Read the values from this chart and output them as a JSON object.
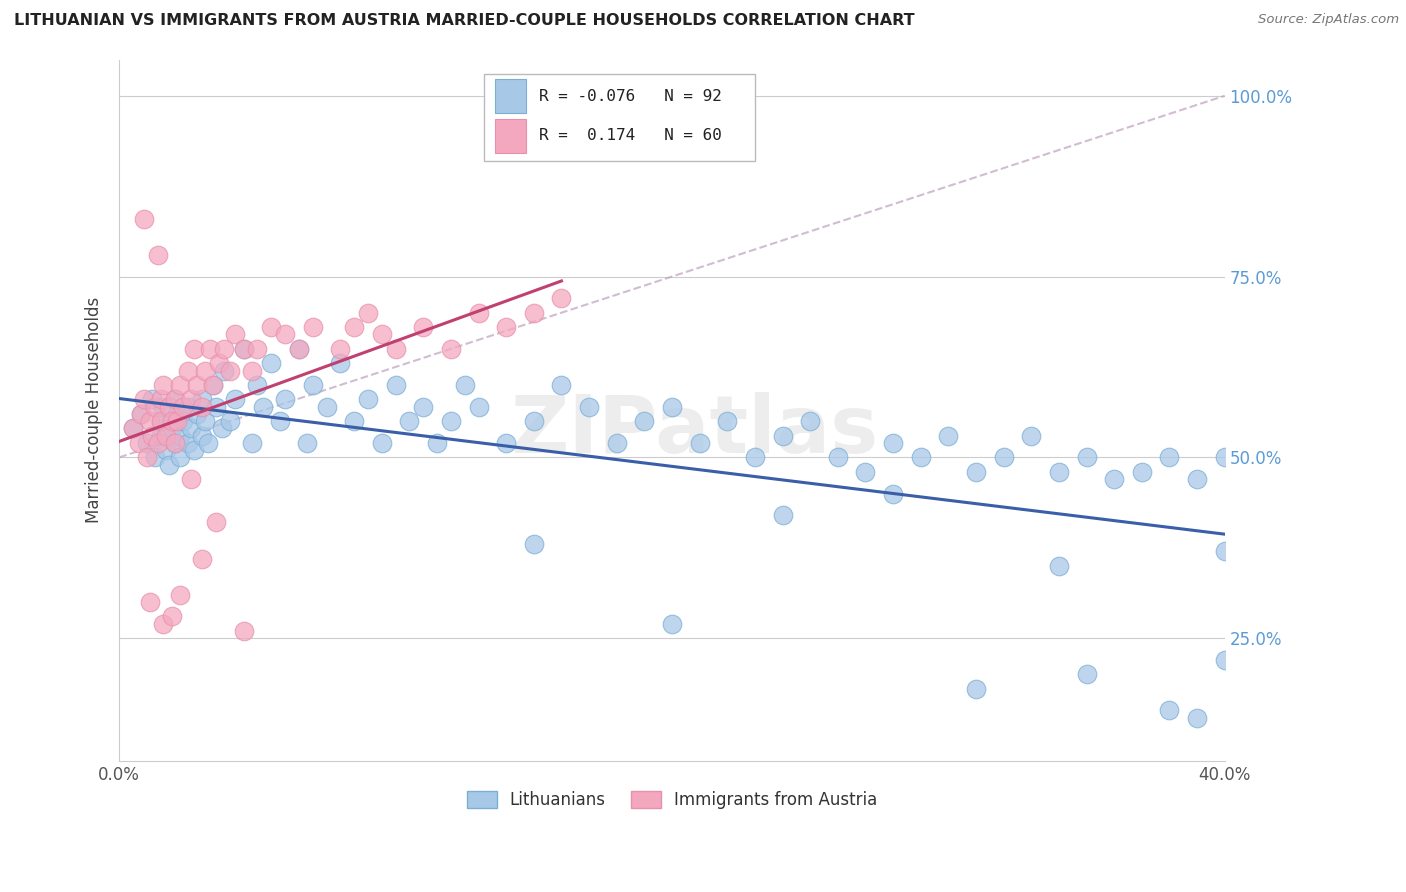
{
  "title": "LITHUANIAN VS IMMIGRANTS FROM AUSTRIA MARRIED-COUPLE HOUSEHOLDS CORRELATION CHART",
  "source": "Source: ZipAtlas.com",
  "ylabel": "Married-couple Households",
  "xlim": [
    0.0,
    0.4
  ],
  "ylim": [
    0.08,
    1.05
  ],
  "ytick_positions": [
    0.25,
    0.5,
    0.75,
    1.0
  ],
  "ytick_labels": [
    "25.0%",
    "50.0%",
    "75.0%",
    "100.0%"
  ],
  "xtick_positions": [
    0.0,
    0.05,
    0.1,
    0.15,
    0.2,
    0.25,
    0.3,
    0.35,
    0.4
  ],
  "xtick_labels": [
    "0.0%",
    "",
    "",
    "",
    "",
    "",
    "",
    "",
    "40.0%"
  ],
  "blue_R": -0.076,
  "blue_N": 92,
  "pink_R": 0.174,
  "pink_N": 60,
  "blue_color": "#A8C8E8",
  "pink_color": "#F4A8C0",
  "blue_edge_color": "#7AAFD4",
  "pink_edge_color": "#E890AA",
  "blue_line_color": "#3A5FA8",
  "pink_line_color": "#C04070",
  "legend_blue_label": "Lithuanians",
  "legend_pink_label": "Immigrants from Austria",
  "blue_x": [
    0.005,
    0.008,
    0.01,
    0.012,
    0.013,
    0.015,
    0.015,
    0.016,
    0.017,
    0.018,
    0.019,
    0.02,
    0.02,
    0.021,
    0.022,
    0.022,
    0.023,
    0.025,
    0.025,
    0.026,
    0.027,
    0.028,
    0.03,
    0.03,
    0.031,
    0.032,
    0.034,
    0.035,
    0.037,
    0.038,
    0.04,
    0.042,
    0.045,
    0.048,
    0.05,
    0.052,
    0.055,
    0.058,
    0.06,
    0.065,
    0.068,
    0.07,
    0.075,
    0.08,
    0.085,
    0.09,
    0.095,
    0.1,
    0.105,
    0.11,
    0.115,
    0.12,
    0.125,
    0.13,
    0.14,
    0.15,
    0.16,
    0.17,
    0.18,
    0.19,
    0.2,
    0.21,
    0.22,
    0.23,
    0.24,
    0.25,
    0.26,
    0.27,
    0.28,
    0.29,
    0.3,
    0.31,
    0.32,
    0.33,
    0.34,
    0.35,
    0.36,
    0.37,
    0.38,
    0.39,
    0.4,
    0.34,
    0.28,
    0.2,
    0.38,
    0.31,
    0.35,
    0.15,
    0.24,
    0.4,
    0.4,
    0.39
  ],
  "blue_y": [
    0.54,
    0.56,
    0.52,
    0.58,
    0.5,
    0.53,
    0.55,
    0.57,
    0.51,
    0.49,
    0.54,
    0.52,
    0.58,
    0.56,
    0.53,
    0.5,
    0.55,
    0.52,
    0.57,
    0.54,
    0.51,
    0.56,
    0.53,
    0.58,
    0.55,
    0.52,
    0.6,
    0.57,
    0.54,
    0.62,
    0.55,
    0.58,
    0.65,
    0.52,
    0.6,
    0.57,
    0.63,
    0.55,
    0.58,
    0.65,
    0.52,
    0.6,
    0.57,
    0.63,
    0.55,
    0.58,
    0.52,
    0.6,
    0.55,
    0.57,
    0.52,
    0.55,
    0.6,
    0.57,
    0.52,
    0.55,
    0.6,
    0.57,
    0.52,
    0.55,
    0.57,
    0.52,
    0.55,
    0.5,
    0.53,
    0.55,
    0.5,
    0.48,
    0.52,
    0.5,
    0.53,
    0.48,
    0.5,
    0.53,
    0.48,
    0.5,
    0.47,
    0.48,
    0.5,
    0.47,
    0.5,
    0.35,
    0.45,
    0.27,
    0.15,
    0.18,
    0.2,
    0.38,
    0.42,
    0.37,
    0.22,
    0.14
  ],
  "pink_x": [
    0.005,
    0.007,
    0.008,
    0.009,
    0.01,
    0.011,
    0.012,
    0.013,
    0.014,
    0.015,
    0.015,
    0.016,
    0.017,
    0.018,
    0.019,
    0.02,
    0.02,
    0.021,
    0.022,
    0.023,
    0.025,
    0.026,
    0.027,
    0.028,
    0.03,
    0.031,
    0.033,
    0.034,
    0.036,
    0.038,
    0.04,
    0.042,
    0.045,
    0.048,
    0.05,
    0.055,
    0.06,
    0.065,
    0.07,
    0.08,
    0.085,
    0.09,
    0.095,
    0.1,
    0.11,
    0.12,
    0.13,
    0.14,
    0.15,
    0.16,
    0.009,
    0.011,
    0.014,
    0.016,
    0.019,
    0.022,
    0.026,
    0.03,
    0.035,
    0.045
  ],
  "pink_y": [
    0.54,
    0.52,
    0.56,
    0.58,
    0.5,
    0.55,
    0.53,
    0.57,
    0.52,
    0.55,
    0.58,
    0.6,
    0.53,
    0.57,
    0.55,
    0.52,
    0.58,
    0.55,
    0.6,
    0.57,
    0.62,
    0.58,
    0.65,
    0.6,
    0.57,
    0.62,
    0.65,
    0.6,
    0.63,
    0.65,
    0.62,
    0.67,
    0.65,
    0.62,
    0.65,
    0.68,
    0.67,
    0.65,
    0.68,
    0.65,
    0.68,
    0.7,
    0.67,
    0.65,
    0.68,
    0.65,
    0.7,
    0.68,
    0.7,
    0.72,
    0.83,
    0.3,
    0.78,
    0.27,
    0.28,
    0.31,
    0.47,
    0.36,
    0.41,
    0.26
  ]
}
